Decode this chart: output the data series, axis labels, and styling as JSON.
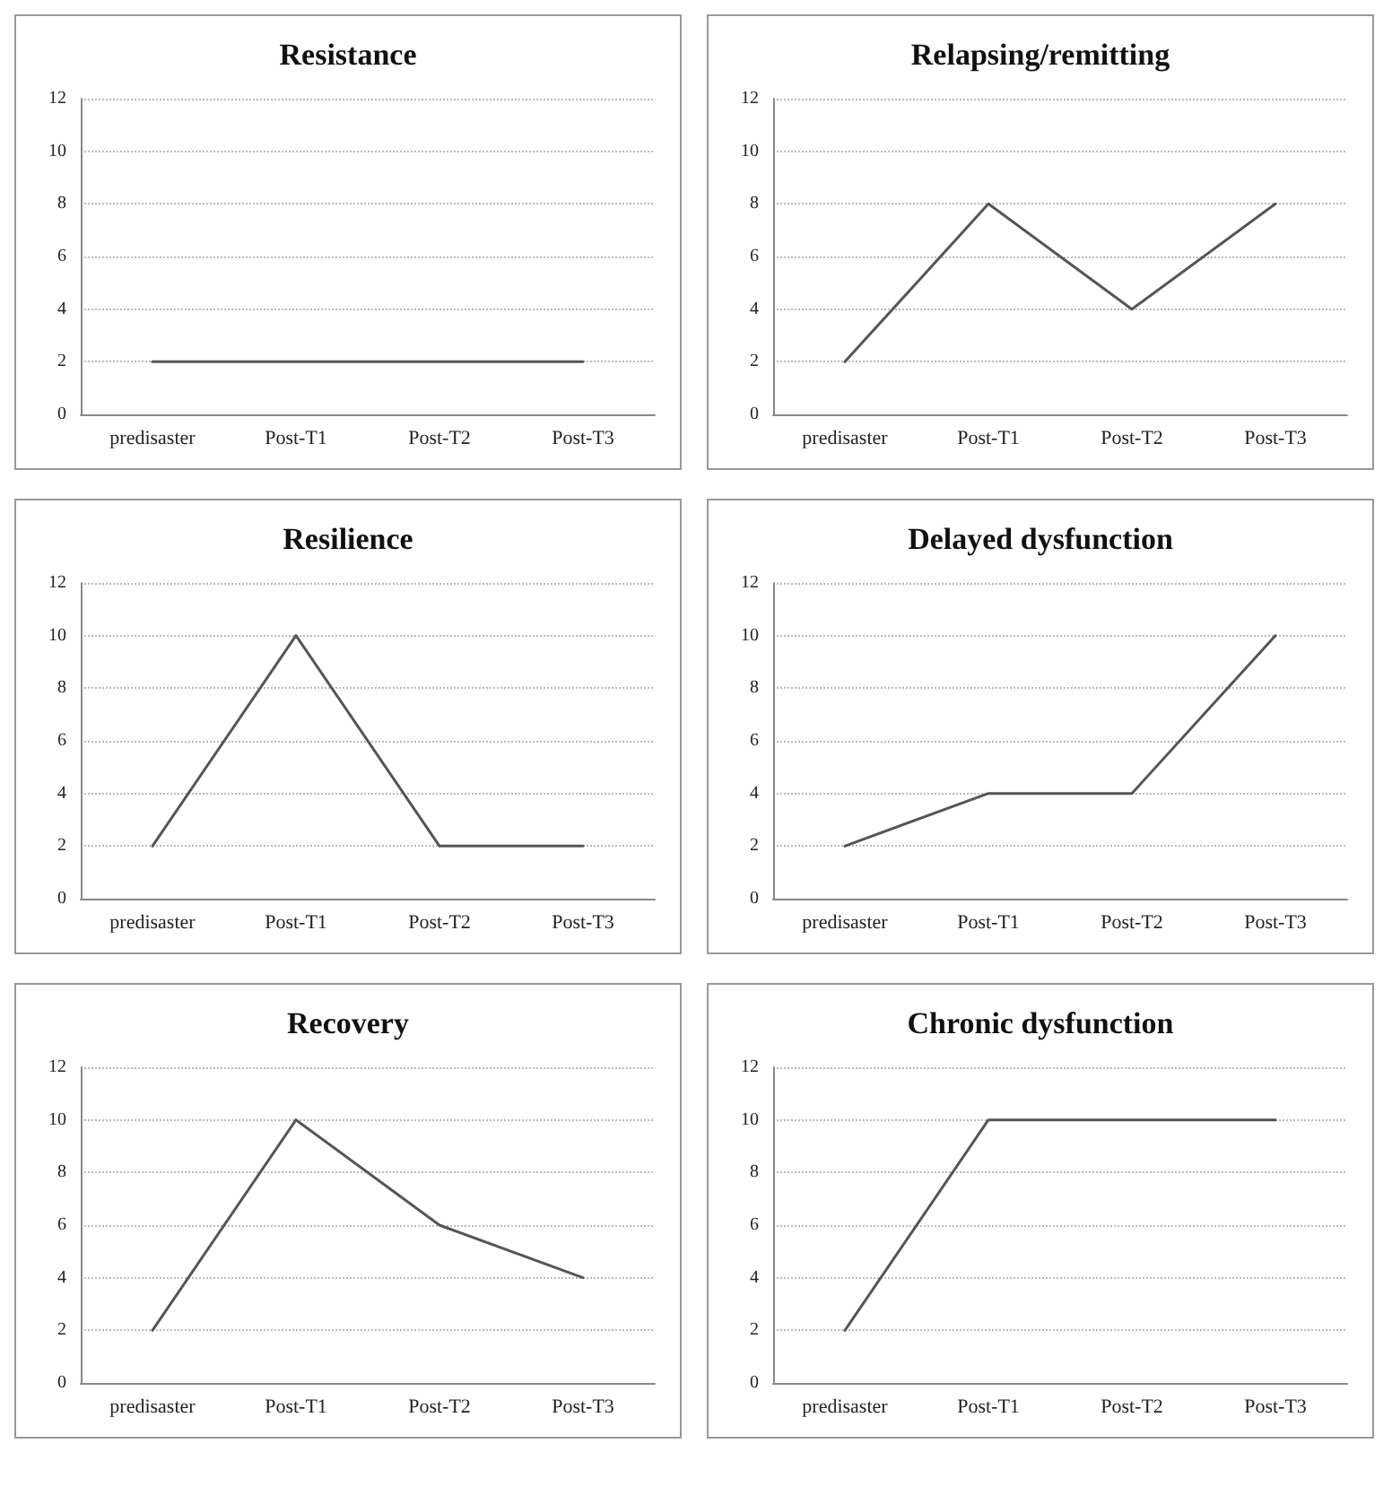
{
  "chart_data": [
    {
      "type": "line",
      "title": "Resistance",
      "categories": [
        "predisaster",
        "Post-T1",
        "Post-T2",
        "Post-T3"
      ],
      "series": [
        {
          "color": "#555555",
          "values": [
            2,
            2,
            2,
            2
          ]
        }
      ],
      "ylim": [
        0,
        12
      ],
      "yticks": [
        0,
        2,
        4,
        6,
        8,
        10,
        12
      ],
      "grid": "y",
      "marker": "none"
    },
    {
      "type": "line",
      "title": "Relapsing/remitting",
      "categories": [
        "predisaster",
        "Post-T1",
        "Post-T2",
        "Post-T3"
      ],
      "series": [
        {
          "color": "#555555",
          "values": [
            2,
            8,
            4,
            8
          ]
        }
      ],
      "ylim": [
        0,
        12
      ],
      "yticks": [
        0,
        2,
        4,
        6,
        8,
        10,
        12
      ],
      "grid": "y",
      "marker": "none"
    },
    {
      "type": "line",
      "title": "Resilience",
      "categories": [
        "predisaster",
        "Post-T1",
        "Post-T2",
        "Post-T3"
      ],
      "series": [
        {
          "color": "#555555",
          "values": [
            2,
            10,
            2,
            2
          ]
        }
      ],
      "ylim": [
        0,
        12
      ],
      "yticks": [
        0,
        2,
        4,
        6,
        8,
        10,
        12
      ],
      "grid": "y",
      "marker": "none"
    },
    {
      "type": "line",
      "title": "Delayed dysfunction",
      "categories": [
        "predisaster",
        "Post-T1",
        "Post-T2",
        "Post-T3"
      ],
      "series": [
        {
          "color": "#555555",
          "values": [
            2,
            4,
            4,
            10
          ]
        }
      ],
      "ylim": [
        0,
        12
      ],
      "yticks": [
        0,
        2,
        4,
        6,
        8,
        10,
        12
      ],
      "grid": "y",
      "marker": "none"
    },
    {
      "type": "line",
      "title": "Recovery",
      "categories": [
        "predisaster",
        "Post-T1",
        "Post-T2",
        "Post-T3"
      ],
      "series": [
        {
          "color": "#555555",
          "values": [
            2,
            10,
            6,
            4
          ]
        }
      ],
      "ylim": [
        0,
        12
      ],
      "yticks": [
        0,
        2,
        4,
        6,
        8,
        10,
        12
      ],
      "grid": "y",
      "marker": "none"
    },
    {
      "type": "line",
      "title": "Chronic dysfunction",
      "categories": [
        "predisaster",
        "Post-T1",
        "Post-T2",
        "Post-T3"
      ],
      "series": [
        {
          "color": "#555555",
          "values": [
            2,
            10,
            10,
            10
          ]
        }
      ],
      "ylim": [
        0,
        12
      ],
      "yticks": [
        0,
        2,
        4,
        6,
        8,
        10,
        12
      ],
      "grid": "y",
      "marker": "none"
    }
  ]
}
